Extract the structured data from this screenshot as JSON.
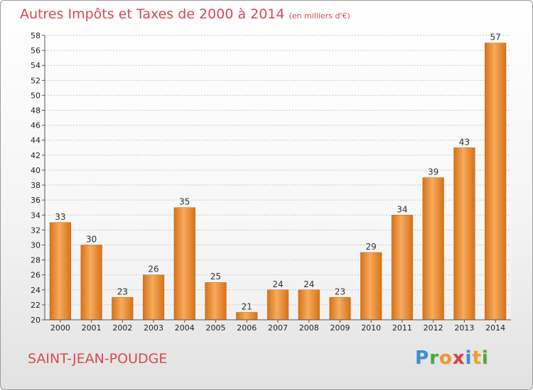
{
  "chart_data": {
    "type": "bar",
    "title": "Autres Impôts et Taxes de 2000 à 2014",
    "subtitle": "(en milliers d'€)",
    "categories": [
      "2000",
      "2001",
      "2002",
      "2003",
      "2004",
      "2005",
      "2006",
      "2007",
      "2008",
      "2009",
      "2010",
      "2011",
      "2012",
      "2013",
      "2014"
    ],
    "values": [
      33,
      30,
      23,
      26,
      35,
      25,
      21,
      24,
      24,
      23,
      29,
      34,
      39,
      43,
      57
    ],
    "ylim": [
      20,
      58
    ],
    "yticks": [
      20,
      22,
      24,
      26,
      28,
      30,
      32,
      34,
      36,
      38,
      40,
      42,
      44,
      46,
      48,
      50,
      52,
      54,
      56,
      58
    ],
    "grid": true,
    "bar_color": "#f0962e",
    "bar_color_light": "#f6ab5c",
    "bar_color_dark": "#d67218"
  },
  "footer": {
    "town": "SAINT-JEAN-POUDGE",
    "logo_letters": [
      {
        "ch": "P",
        "color": "#3a8fd4"
      },
      {
        "ch": "r",
        "color": "#4aaa3c"
      },
      {
        "ch": "o",
        "color": "#f0962e"
      },
      {
        "ch": "x",
        "color": "#e04040"
      },
      {
        "ch": "i",
        "color": "#3a8fd4"
      },
      {
        "ch": "t",
        "color": "#f0a020"
      },
      {
        "ch": "i",
        "color": "#4aaa3c"
      }
    ]
  }
}
